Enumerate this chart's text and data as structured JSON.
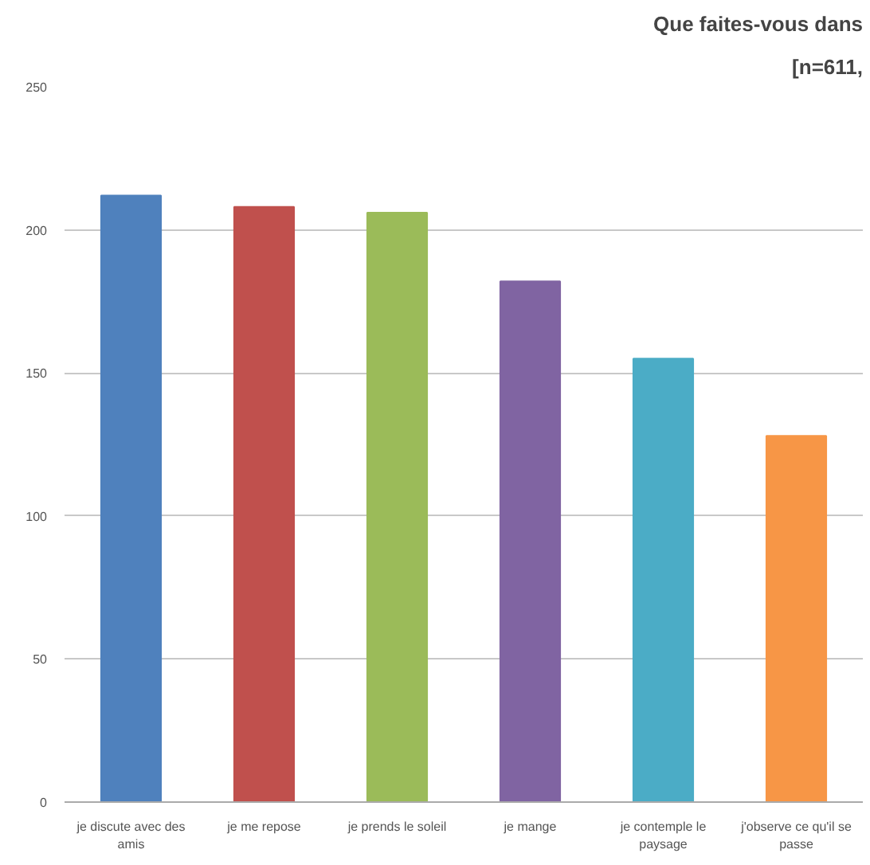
{
  "chart_data": {
    "type": "bar",
    "title": "Que faites-vous dans",
    "subtitle": "[n=611,",
    "categories": [
      "je discute avec des amis",
      "je me repose",
      "je prends le soleil",
      "je mange",
      "je contemple le paysage",
      "j'observe ce qu'il se passe"
    ],
    "values": [
      212,
      208,
      206,
      182,
      155,
      128
    ],
    "colors": [
      "#4f81bd",
      "#c0504d",
      "#9bbb59",
      "#8064a2",
      "#4bacc6",
      "#f79646"
    ],
    "ylim": [
      0,
      250
    ],
    "yticks": [
      0,
      50,
      100,
      150,
      200,
      250
    ],
    "grid": "y"
  }
}
